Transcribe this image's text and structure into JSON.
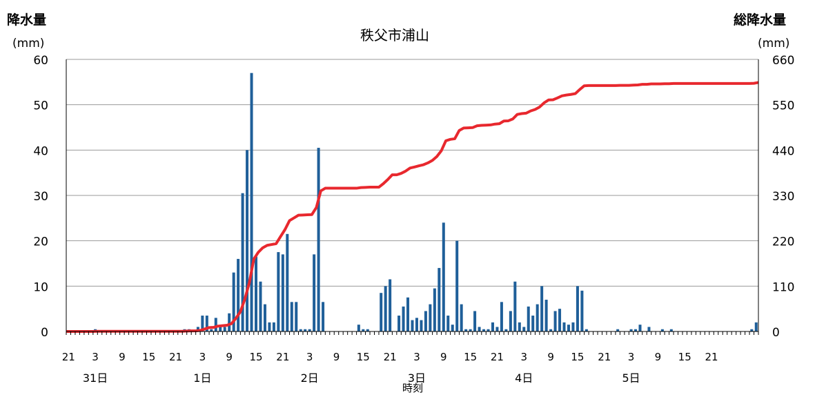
{
  "chart_data": {
    "type": "bar",
    "title": "秩父市浦山",
    "left_axis": {
      "label": "降水量",
      "unit": "(mm)",
      "ylim": [
        0,
        60
      ],
      "ticks": [
        0,
        10,
        20,
        30,
        40,
        50,
        60
      ]
    },
    "right_axis": {
      "label": "総降水量",
      "unit": "(mm)",
      "ylim": [
        0,
        660
      ],
      "ticks": [
        0,
        110,
        220,
        330,
        440,
        550,
        660
      ]
    },
    "xlabel": "時刻",
    "x_start_hour": 21,
    "x_tick_labels": [
      "21",
      "3",
      "9",
      "15",
      "21",
      "3",
      "9",
      "15",
      "21",
      "3",
      "9",
      "15",
      "21",
      "3",
      "9",
      "15",
      "21",
      "3",
      "9",
      "15",
      "21",
      "3",
      "9",
      "15",
      "21"
    ],
    "day_labels": [
      "31日",
      "1日",
      "2日",
      "3日",
      "4日",
      "5日"
    ],
    "grid": true,
    "series": [
      {
        "kind": "bar",
        "color": "#1f5f99",
        "values": [
          0,
          0,
          0,
          0,
          0,
          0,
          0.5,
          0,
          0,
          0,
          0,
          0,
          0,
          0,
          0,
          0,
          0,
          0,
          0,
          0,
          0,
          0,
          0,
          0,
          0,
          0,
          0.5,
          0.5,
          0,
          1,
          3.5,
          3.5,
          0.5,
          3,
          1,
          1,
          4,
          13,
          16,
          30.5,
          40,
          57,
          16.5,
          11,
          6,
          2,
          2,
          17.5,
          17,
          21.5,
          6.5,
          6.5,
          0.5,
          0.5,
          0.5,
          17,
          40.5,
          6.5,
          0,
          0,
          0,
          0,
          0,
          0,
          0,
          1.5,
          0.5,
          0.5,
          0,
          0,
          8.5,
          10,
          11.5,
          0,
          3.5,
          5.5,
          7.5,
          2.5,
          3,
          2.5,
          4.5,
          6,
          9.5,
          14,
          24,
          3.5,
          1.5,
          20,
          6,
          0.5,
          0.5,
          4.5,
          1,
          0.5,
          0.5,
          2,
          1,
          6.5,
          0.5,
          4.5,
          11,
          2,
          1,
          5.5,
          3.5,
          6,
          10,
          7,
          0.5,
          4.5,
          5,
          2,
          1.5,
          2,
          10,
          9,
          0.5,
          0,
          0,
          0,
          0,
          0,
          0,
          0.5,
          0,
          0,
          0.5,
          0.5,
          1.5,
          0,
          1,
          0,
          0,
          0.5,
          0,
          0.5,
          0,
          0,
          0,
          0,
          0,
          0,
          0,
          0,
          0,
          0,
          0,
          0,
          0,
          0,
          0,
          0,
          0,
          0.5,
          2
        ]
      },
      {
        "kind": "line",
        "axis": "right",
        "color": "#e8282e"
      }
    ]
  }
}
